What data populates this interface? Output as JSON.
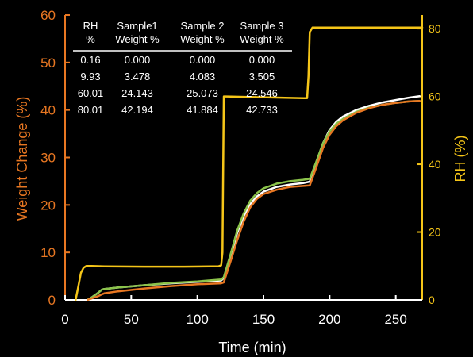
{
  "chart_data": {
    "type": "line",
    "xlabel": "Time (min)",
    "ylabel_left": "Weight Change (%)",
    "ylabel_right": "RH (%)",
    "xlim": [
      0,
      270
    ],
    "ylim_left": [
      0,
      60
    ],
    "ylim_right": [
      0,
      84
    ],
    "x_ticks": [
      0,
      50,
      100,
      150,
      200,
      250
    ],
    "y_left_ticks": [
      0,
      10,
      20,
      30,
      40,
      50,
      60
    ],
    "y_right_ticks": [
      0,
      20,
      40,
      60,
      80
    ],
    "grid": false,
    "series": [
      {
        "axis": "right",
        "color": "#f5c518",
        "x": [
          8,
          10,
          12,
          14,
          16,
          20,
          30,
          60,
          90,
          110,
          116,
          118,
          119,
          120,
          122,
          180,
          183,
          184,
          185,
          187,
          270
        ],
        "y": [
          0,
          4,
          8,
          9.5,
          10,
          10,
          9.9,
          9.8,
          9.8,
          9.9,
          9.9,
          10.2,
          14,
          60,
          60,
          59.5,
          59.5,
          66,
          79,
          80.3,
          80.3
        ]
      },
      {
        "axis": "left",
        "color": "#ffffff",
        "x": [
          17,
          20,
          25,
          28,
          30,
          40,
          60,
          80,
          100,
          118,
          120,
          125,
          130,
          135,
          140,
          145,
          150,
          160,
          170,
          180,
          185,
          190,
          195,
          200,
          205,
          210,
          220,
          230,
          240,
          250,
          260,
          268
        ],
        "y": [
          0,
          0.5,
          1.5,
          2.2,
          2.3,
          2.6,
          3.1,
          3.5,
          3.8,
          4.1,
          4.6,
          9,
          14,
          17.6,
          20.2,
          21.8,
          22.8,
          23.8,
          24.3,
          24.6,
          24.9,
          29,
          33,
          35.8,
          37.5,
          38.6,
          40,
          40.9,
          41.6,
          42.1,
          42.6,
          42.9
        ]
      },
      {
        "axis": "left",
        "color": "#8bc34a",
        "x": [
          17,
          20,
          25,
          28,
          30,
          40,
          60,
          80,
          100,
          118,
          120,
          125,
          130,
          135,
          140,
          145,
          150,
          160,
          170,
          180,
          185,
          190,
          195,
          200,
          205,
          210,
          220,
          230,
          240,
          250,
          260,
          268
        ],
        "y": [
          0,
          0.5,
          1.5,
          2.2,
          2.3,
          2.6,
          3.1,
          3.6,
          3.9,
          4.3,
          4.8,
          9.5,
          14.5,
          18.2,
          20.9,
          22.5,
          23.5,
          24.5,
          25.0,
          25.3,
          25.5,
          29.2,
          33,
          35.5,
          37.1,
          38.1,
          39.6,
          40.5,
          41.1,
          41.5,
          41.8,
          41.9
        ]
      },
      {
        "axis": "left",
        "color": "#e87722",
        "x": [
          17,
          20,
          25,
          28,
          30,
          40,
          60,
          80,
          100,
          118,
          120,
          125,
          130,
          135,
          140,
          145,
          150,
          160,
          170,
          180,
          185,
          190,
          195,
          200,
          205,
          210,
          220,
          230,
          240,
          250,
          260,
          268
        ],
        "y": [
          0,
          0.3,
          0.8,
          1.2,
          1.4,
          1.8,
          2.4,
          2.9,
          3.3,
          3.5,
          3.7,
          8,
          12.5,
          16.5,
          19.5,
          21.3,
          22.3,
          23.2,
          23.8,
          24.0,
          24.1,
          28,
          32,
          34.8,
          36.6,
          37.8,
          39.4,
          40.4,
          41.1,
          41.5,
          41.8,
          41.9
        ]
      }
    ],
    "table": {
      "headers": [
        [
          "RH",
          "%"
        ],
        [
          "Sample1",
          "Weight %"
        ],
        [
          "Sample 2",
          "Weight %"
        ],
        [
          "Sample 3",
          "Weight %"
        ]
      ],
      "rows": [
        [
          "0.16",
          "0.000",
          "0.000",
          "0.000"
        ],
        [
          "9.93",
          "3.478",
          "4.083",
          "3.505"
        ],
        [
          "60.01",
          "24.143",
          "25.073",
          "24.546"
        ],
        [
          "80.01",
          "42.194",
          "41.884",
          "42.733"
        ]
      ]
    },
    "colors": {
      "left_axis": "#e87722",
      "right_axis": "#f5c518",
      "bottom_axis": "#ffffff"
    }
  }
}
